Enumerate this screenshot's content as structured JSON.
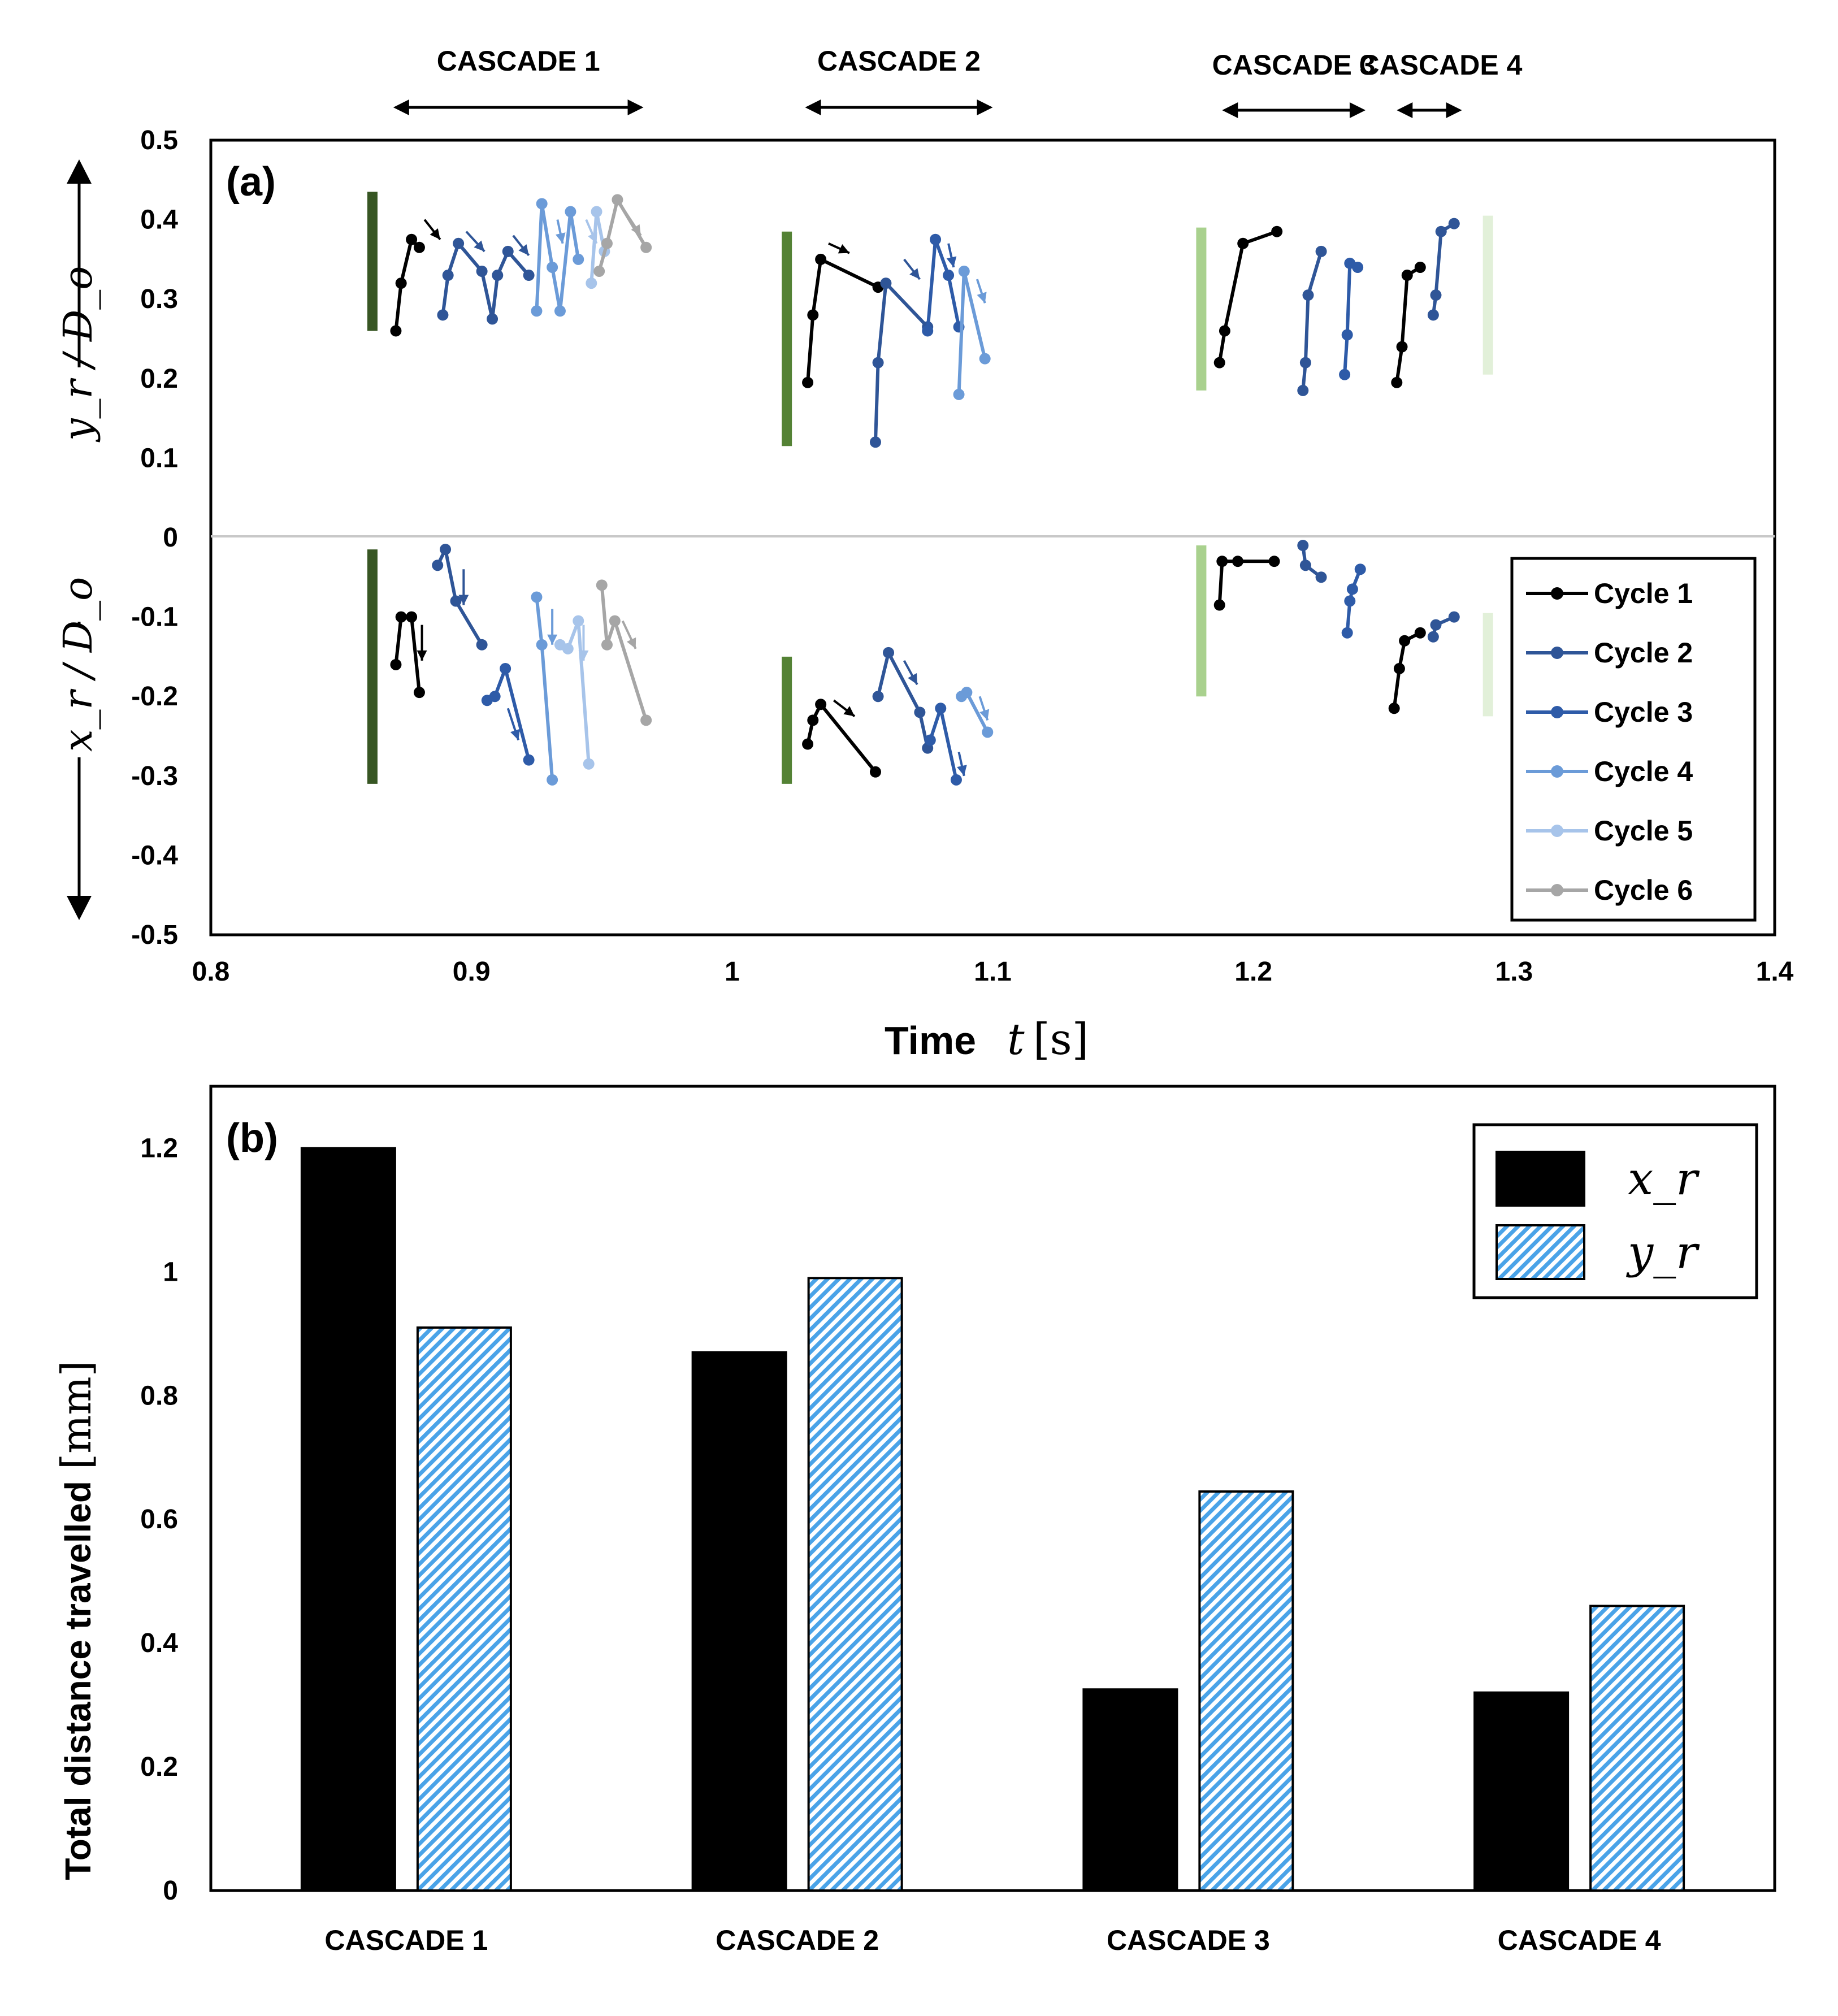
{
  "chart_data": [
    {
      "type": "line",
      "panel_label": "(a)",
      "xlabel_prefix": "Time",
      "xlabel_var": "t",
      "xlabel_unit": "[s]",
      "ylabel_upper": "y_r / D_o",
      "ylabel_lower": "x_r / D_o",
      "xlim": [
        0.8,
        1.4
      ],
      "ylim": [
        -0.5,
        0.5
      ],
      "xticks": [
        "0.8",
        "0.9",
        "1",
        "1.1",
        "1.2",
        "1.3",
        "1.4"
      ],
      "yticks": [
        "0.5",
        "0.4",
        "0.3",
        "0.2",
        "0.1",
        "0",
        "-0.1",
        "-0.2",
        "-0.3",
        "-0.4",
        "-0.5"
      ],
      "cascades": [
        {
          "label": "CASCADE 1",
          "range": [
            0.87,
            0.966
          ]
        },
        {
          "label": "CASCADE 2",
          "range": [
            1.028,
            1.1
          ]
        },
        {
          "label": "CASCADE 3",
          "range": [
            1.188,
            1.243
          ]
        },
        {
          "label": "CASCADE 4",
          "range": [
            1.255,
            1.28
          ]
        }
      ],
      "legend": [
        "Cycle 1",
        "Cycle 2",
        "Cycle 3",
        "Cycle 4",
        "Cycle 5",
        "Cycle 6"
      ],
      "colors": [
        "#000000",
        "#2f5597",
        "#2e5ba8",
        "#6b9bd8",
        "#a7c4ea",
        "#a6a6a6"
      ],
      "markers": [
        {
          "t": 0.862,
          "y0": 0.26,
          "y1": 0.435,
          "color": "#375623"
        },
        {
          "t": 0.862,
          "y0": -0.31,
          "y1": -0.015,
          "color": "#375623"
        },
        {
          "t": 1.021,
          "y0": 0.115,
          "y1": 0.385,
          "color": "#548235"
        },
        {
          "t": 1.021,
          "y0": -0.31,
          "y1": -0.15,
          "color": "#548235"
        },
        {
          "t": 1.18,
          "y0": 0.185,
          "y1": 0.39,
          "color": "#a9d18e"
        },
        {
          "t": 1.18,
          "y0": -0.2,
          "y1": -0.01,
          "color": "#a9d18e"
        },
        {
          "t": 1.29,
          "y0": 0.205,
          "y1": 0.405,
          "color": "#e2f0d9"
        },
        {
          "t": 1.29,
          "y0": -0.225,
          "y1": -0.095,
          "color": "#e2f0d9"
        }
      ],
      "series": [
        {
          "cycle": 1,
          "points": [
            [
              0.871,
              0.26
            ],
            [
              0.873,
              0.32
            ],
            [
              0.877,
              0.375
            ],
            [
              0.88,
              0.365
            ]
          ]
        },
        {
          "cycle": 2,
          "points": [
            [
              0.889,
              0.28
            ],
            [
              0.891,
              0.33
            ],
            [
              0.895,
              0.37
            ],
            [
              0.904,
              0.335
            ],
            [
              0.908,
              0.275
            ],
            [
              0.91,
              0.33
            ],
            [
              0.914,
              0.36
            ],
            [
              0.922,
              0.33
            ]
          ]
        },
        {
          "cycle": 4,
          "points": [
            [
              0.925,
              0.285
            ],
            [
              0.927,
              0.42
            ],
            [
              0.931,
              0.34
            ],
            [
              0.934,
              0.285
            ],
            [
              0.938,
              0.41
            ],
            [
              0.941,
              0.35
            ]
          ]
        },
        {
          "cycle": 5,
          "points": [
            [
              0.946,
              0.32
            ],
            [
              0.948,
              0.41
            ],
            [
              0.951,
              0.36
            ]
          ]
        },
        {
          "cycle": 6,
          "points": [
            [
              0.949,
              0.335
            ],
            [
              0.952,
              0.37
            ],
            [
              0.956,
              0.425
            ],
            [
              0.967,
              0.365
            ]
          ]
        },
        {
          "cycle": 1,
          "points": [
            [
              0.871,
              -0.16
            ],
            [
              0.873,
              -0.1
            ],
            [
              0.877,
              -0.1
            ],
            [
              0.88,
              -0.195
            ]
          ]
        },
        {
          "cycle": 2,
          "points": [
            [
              0.887,
              -0.035
            ],
            [
              0.89,
              -0.015
            ],
            [
              0.894,
              -0.08
            ],
            [
              0.904,
              -0.135
            ]
          ]
        },
        {
          "cycle": 3,
          "points": [
            [
              0.906,
              -0.205
            ],
            [
              0.909,
              -0.2
            ],
            [
              0.913,
              -0.165
            ],
            [
              0.922,
              -0.28
            ]
          ]
        },
        {
          "cycle": 4,
          "points": [
            [
              0.925,
              -0.075
            ],
            [
              0.927,
              -0.135
            ],
            [
              0.931,
              -0.305
            ]
          ]
        },
        {
          "cycle": 5,
          "points": [
            [
              0.934,
              -0.135
            ],
            [
              0.937,
              -0.14
            ],
            [
              0.941,
              -0.105
            ],
            [
              0.945,
              -0.285
            ]
          ]
        },
        {
          "cycle": 6,
          "points": [
            [
              0.95,
              -0.06
            ],
            [
              0.952,
              -0.135
            ],
            [
              0.955,
              -0.105
            ],
            [
              0.967,
              -0.23
            ]
          ]
        },
        {
          "cycle": 1,
          "points": [
            [
              1.029,
              0.195
            ],
            [
              1.031,
              0.28
            ],
            [
              1.034,
              0.35
            ],
            [
              1.056,
              0.315
            ]
          ]
        },
        {
          "cycle": 2,
          "points": [
            [
              1.055,
              0.12
            ],
            [
              1.056,
              0.22
            ],
            [
              1.059,
              0.32
            ],
            [
              1.075,
              0.265
            ]
          ]
        },
        {
          "cycle": 3,
          "points": [
            [
              1.075,
              0.26
            ],
            [
              1.078,
              0.375
            ],
            [
              1.083,
              0.33
            ],
            [
              1.087,
              0.265
            ]
          ]
        },
        {
          "cycle": 4,
          "points": [
            [
              1.087,
              0.18
            ],
            [
              1.089,
              0.335
            ],
            [
              1.097,
              0.225
            ]
          ]
        },
        {
          "cycle": 1,
          "points": [
            [
              1.029,
              -0.26
            ],
            [
              1.031,
              -0.23
            ],
            [
              1.034,
              -0.21
            ],
            [
              1.055,
              -0.295
            ]
          ]
        },
        {
          "cycle": 2,
          "points": [
            [
              1.056,
              -0.2
            ],
            [
              1.06,
              -0.145
            ],
            [
              1.072,
              -0.22
            ],
            [
              1.075,
              -0.265
            ]
          ]
        },
        {
          "cycle": 3,
          "points": [
            [
              1.076,
              -0.255
            ],
            [
              1.08,
              -0.215
            ],
            [
              1.086,
              -0.305
            ]
          ]
        },
        {
          "cycle": 4,
          "points": [
            [
              1.088,
              -0.2
            ],
            [
              1.09,
              -0.195
            ],
            [
              1.098,
              -0.245
            ]
          ]
        },
        {
          "cycle": 1,
          "points": [
            [
              1.187,
              0.22
            ],
            [
              1.189,
              0.26
            ],
            [
              1.196,
              0.37
            ],
            [
              1.209,
              0.385
            ]
          ]
        },
        {
          "cycle": 2,
          "points": [
            [
              1.219,
              0.185
            ],
            [
              1.22,
              0.22
            ],
            [
              1.221,
              0.305
            ],
            [
              1.226,
              0.36
            ]
          ]
        },
        {
          "cycle": 3,
          "points": [
            [
              1.235,
              0.205
            ],
            [
              1.236,
              0.255
            ],
            [
              1.237,
              0.345
            ],
            [
              1.24,
              0.34
            ]
          ]
        },
        {
          "cycle": 1,
          "points": [
            [
              1.187,
              -0.085
            ],
            [
              1.188,
              -0.03
            ],
            [
              1.194,
              -0.03
            ],
            [
              1.208,
              -0.03
            ]
          ]
        },
        {
          "cycle": 2,
          "points": [
            [
              1.219,
              -0.01
            ],
            [
              1.22,
              -0.035
            ],
            [
              1.226,
              -0.05
            ]
          ]
        },
        {
          "cycle": 3,
          "points": [
            [
              1.236,
              -0.12
            ],
            [
              1.237,
              -0.08
            ],
            [
              1.238,
              -0.065
            ],
            [
              1.241,
              -0.04
            ]
          ]
        },
        {
          "cycle": 1,
          "points": [
            [
              1.255,
              0.195
            ],
            [
              1.257,
              0.24
            ],
            [
              1.259,
              0.33
            ],
            [
              1.264,
              0.34
            ]
          ]
        },
        {
          "cycle": 2,
          "points": [
            [
              1.269,
              0.28
            ],
            [
              1.27,
              0.305
            ],
            [
              1.272,
              0.385
            ],
            [
              1.277,
              0.395
            ]
          ]
        },
        {
          "cycle": 1,
          "points": [
            [
              1.254,
              -0.215
            ],
            [
              1.256,
              -0.165
            ],
            [
              1.258,
              -0.13
            ],
            [
              1.264,
              -0.12
            ]
          ]
        },
        {
          "cycle": 2,
          "points": [
            [
              1.269,
              -0.125
            ],
            [
              1.27,
              -0.11
            ],
            [
              1.277,
              -0.1
            ]
          ]
        }
      ],
      "arrows": [
        {
          "t": 0.882,
          "y": 0.4,
          "dt": 0.006,
          "dy": -0.025,
          "cycle": 1
        },
        {
          "t": 0.898,
          "y": 0.385,
          "dt": 0.007,
          "dy": -0.025,
          "cycle": 2
        },
        {
          "t": 0.916,
          "y": 0.38,
          "dt": 0.006,
          "dy": -0.025,
          "cycle": 2
        },
        {
          "t": 0.933,
          "y": 0.4,
          "dt": 0.002,
          "dy": -0.03,
          "cycle": 4
        },
        {
          "t": 0.944,
          "y": 0.4,
          "dt": 0.004,
          "dy": -0.03,
          "cycle": 5
        },
        {
          "t": 0.959,
          "y": 0.41,
          "dt": 0.006,
          "dy": -0.03,
          "cycle": 6
        },
        {
          "t": 0.881,
          "y": -0.11,
          "dt": 0.0,
          "dy": -0.045,
          "cycle": 1
        },
        {
          "t": 0.897,
          "y": -0.04,
          "dt": 0.0,
          "dy": -0.045,
          "cycle": 2
        },
        {
          "t": 0.914,
          "y": -0.215,
          "dt": 0.004,
          "dy": -0.04,
          "cycle": 3
        },
        {
          "t": 0.931,
          "y": -0.09,
          "dt": 0.0,
          "dy": -0.045,
          "cycle": 4
        },
        {
          "t": 0.943,
          "y": -0.11,
          "dt": 0.0,
          "dy": -0.045,
          "cycle": 5
        },
        {
          "t": 0.958,
          "y": -0.105,
          "dt": 0.005,
          "dy": -0.035,
          "cycle": 6
        },
        {
          "t": 1.037,
          "y": 0.37,
          "dt": 0.008,
          "dy": -0.012,
          "cycle": 1
        },
        {
          "t": 1.066,
          "y": 0.35,
          "dt": 0.006,
          "dy": -0.025,
          "cycle": 2
        },
        {
          "t": 1.083,
          "y": 0.37,
          "dt": 0.002,
          "dy": -0.03,
          "cycle": 3
        },
        {
          "t": 1.094,
          "y": 0.325,
          "dt": 0.003,
          "dy": -0.03,
          "cycle": 4
        },
        {
          "t": 1.039,
          "y": -0.205,
          "dt": 0.008,
          "dy": -0.02,
          "cycle": 1
        },
        {
          "t": 1.066,
          "y": -0.155,
          "dt": 0.005,
          "dy": -0.03,
          "cycle": 2
        },
        {
          "t": 1.087,
          "y": -0.27,
          "dt": 0.002,
          "dy": -0.03,
          "cycle": 3
        },
        {
          "t": 1.095,
          "y": -0.2,
          "dt": 0.003,
          "dy": -0.03,
          "cycle": 4
        }
      ]
    },
    {
      "type": "bar",
      "panel_label": "(b)",
      "categories": [
        "CASCADE 1",
        "CASCADE 2",
        "CASCADE 3",
        "CASCADE 4"
      ],
      "series": [
        {
          "name": "x_r",
          "values": [
            1.2,
            0.87,
            0.325,
            0.32
          ],
          "fill": "#000000"
        },
        {
          "name": "y_r",
          "values": [
            0.91,
            0.99,
            0.645,
            0.46
          ],
          "fill": "hatch"
        }
      ],
      "ylabel_text": "Total distance travelled",
      "ylabel_unit": "[mm]",
      "ylim": [
        0,
        1.3
      ],
      "yticks": [
        "0",
        "0.2",
        "0.4",
        "0.6",
        "0.8",
        "1",
        "1.2"
      ]
    }
  ]
}
